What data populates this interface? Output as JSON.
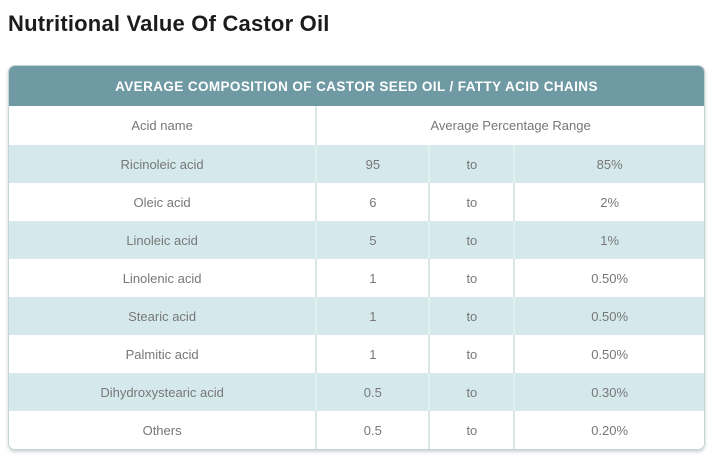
{
  "page": {
    "title": "Nutritional Value Of Castor Oil"
  },
  "table": {
    "band_title": "AVERAGE COMPOSITION OF CASTOR SEED OIL / FATTY ACID CHAINS",
    "columns": {
      "acid_name": "Acid name",
      "range": "Average Percentage Range"
    },
    "rows": [
      {
        "acid": "Ricinoleic acid",
        "min": "95",
        "to_word": "to",
        "max": "85%"
      },
      {
        "acid": "Oleic acid",
        "min": "6",
        "to_word": "to",
        "max": "2%"
      },
      {
        "acid": "Linoleic acid",
        "min": "5",
        "to_word": "to",
        "max": "1%"
      },
      {
        "acid": "Linolenic acid",
        "min": "1",
        "to_word": "to",
        "max": "0.50%"
      },
      {
        "acid": "Stearic acid",
        "min": "1",
        "to_word": "to",
        "max": "0.50%"
      },
      {
        "acid": "Palmitic acid",
        "min": "1",
        "to_word": "to",
        "max": "0.50%"
      },
      {
        "acid": "Dihydroxystearic acid",
        "min": "0.5",
        "to_word": "to",
        "max": "0.30%"
      },
      {
        "acid": "Others",
        "min": "0.5",
        "to_word": "to",
        "max": "0.20%"
      }
    ]
  },
  "colors": {
    "header_band_bg": "#6f9aa3",
    "header_band_text": "#ffffff",
    "alt_row_bg": "#d5e9ec",
    "row_bg": "#ffffff",
    "cell_text": "#777777",
    "title_text": "#1c1c1c",
    "separator": "#d9e7e9",
    "outer_border": "#c7d4d6"
  },
  "chart_data": {
    "type": "table",
    "title": "AVERAGE COMPOSITION OF CASTOR SEED OIL / FATTY ACID CHAINS",
    "columns": [
      "Acid name",
      "Average Percentage Range (min)",
      "",
      "Average Percentage Range (max)"
    ],
    "rows": [
      [
        "Ricinoleic acid",
        "95",
        "to",
        "85%"
      ],
      [
        "Oleic acid",
        "6",
        "to",
        "2%"
      ],
      [
        "Linoleic acid",
        "5",
        "to",
        "1%"
      ],
      [
        "Linolenic acid",
        "1",
        "to",
        "0.50%"
      ],
      [
        "Stearic acid",
        "1",
        "to",
        "0.50%"
      ],
      [
        "Palmitic acid",
        "1",
        "to",
        "0.50%"
      ],
      [
        "Dihydroxystearic acid",
        "0.5",
        "to",
        "0.30%"
      ],
      [
        "Others",
        "0.5",
        "to",
        "0.20%"
      ]
    ]
  }
}
